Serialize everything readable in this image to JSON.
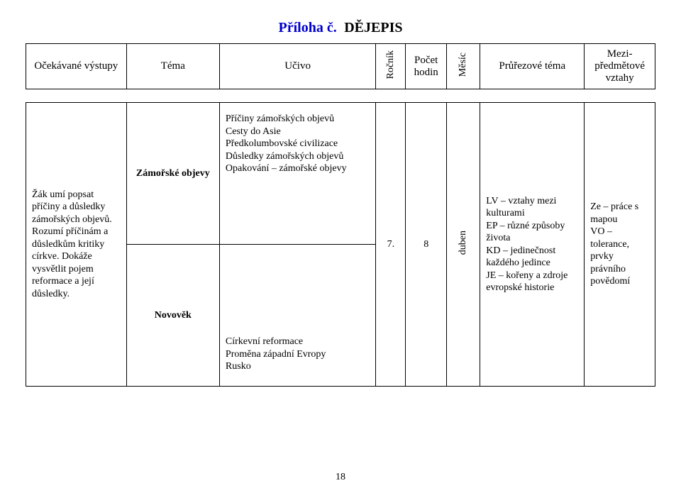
{
  "title": {
    "part1": "Příloha č.",
    "part2": "DĚJEPIS"
  },
  "header": {
    "col1": "Očekávané výstupy",
    "col2": "Téma",
    "col3": "Učivo",
    "col4": "Ročník",
    "col5": "Počet hodin",
    "col6": "Měsíc",
    "col7": "Průřezové téma",
    "col8": "Mezi-\npředmětové vztahy"
  },
  "row": {
    "outcomes": "Žák umí popsat příčiny a důsledky zámořských objevů. Rozumí příčinám a důsledkům kritiky církve. Dokáže vysvětlit pojem reformace a její důsledky.",
    "topic1": "Zámořské objevy",
    "topic2": "Novověk",
    "ucivo1": "Příčiny zámořských objevů\nCesty do Asie\nPředkolumbovské civilizace\nDůsledky zámořských objevů\nOpakování – zámořské objevy",
    "ucivo2": "Církevní reformace\nProměna západní Evropy\nRusko",
    "rocnik": "7.",
    "hodin": "8",
    "mesic": "duben",
    "pruz": "LV – vztahy mezi kulturami\nEP – různé způsoby života\nKD – jedinečnost každého jedince\nJE – kořeny a zdroje evropské historie",
    "vzt": "Ze – práce s mapou\nVO – tolerance, prvky právního povědomí"
  },
  "pagenum": "18",
  "style": {
    "title_color": "#0000cc",
    "border_color": "#000000",
    "bg": "#ffffff",
    "font_body_pt": 14,
    "font_title_pt": 20
  }
}
